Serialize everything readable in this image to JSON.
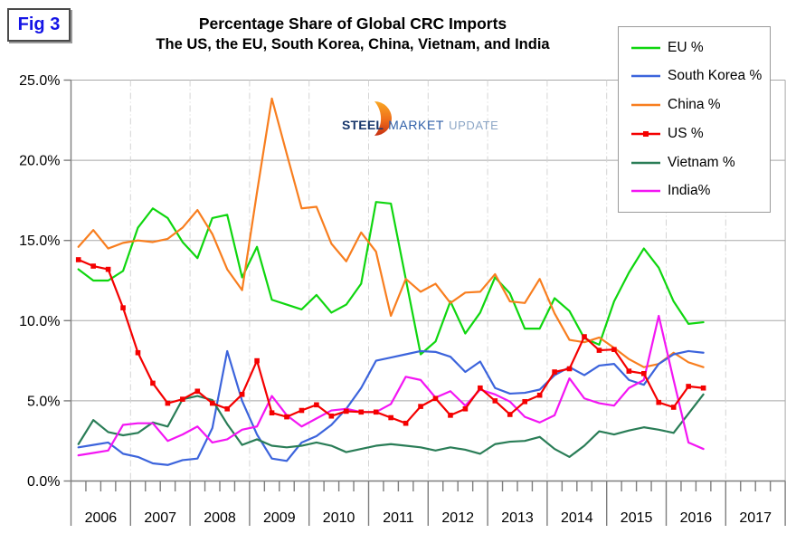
{
  "figure_label": "Fig 3",
  "title": {
    "line1": "Percentage Share of Global CRC Imports",
    "line2": "The US, the EU, South Korea, China, Vietnam, and India"
  },
  "logo": {
    "word1": "STEEL",
    "word2": "MARKET",
    "word3": "UPDATE"
  },
  "chart_data": {
    "type": "line",
    "title": "Percentage Share of Global CRC Imports",
    "subtitle": "The US, the EU, South Korea, China, Vietnam, and India",
    "ylim": [
      0,
      25
    ],
    "ytick_step": 5,
    "y_tick_labels": [
      "0.0%",
      "5.0%",
      "10.0%",
      "15.0%",
      "20.0%",
      "25.0%"
    ],
    "x_year_labels": [
      "2006",
      "2007",
      "2008",
      "2009",
      "2010",
      "2011",
      "2012",
      "2013",
      "2014",
      "2015",
      "2016",
      "2017"
    ],
    "points_per_year": 4,
    "data_start": "2006 Q1",
    "data_end": "2016 Q3",
    "grid": {
      "horizontal": true,
      "vertical_year_lines": true
    },
    "legend_position": "top-right",
    "colors": {
      "grid": "#a8a8a8",
      "year_line": "#d4d4d4",
      "axis": "#7e7e7e",
      "fig_label": "#1414e6"
    },
    "series": [
      {
        "name": "EU %",
        "color": "#0fd60f",
        "marker": "none",
        "values": [
          13.2,
          12.5,
          12.5,
          13.1,
          15.8,
          17.0,
          16.4,
          14.9,
          13.9,
          16.4,
          16.6,
          12.7,
          14.6,
          11.3,
          11.0,
          10.7,
          11.6,
          10.5,
          11.0,
          12.3,
          17.4,
          17.3,
          12.6,
          7.9,
          8.7,
          11.2,
          9.2,
          10.5,
          12.7,
          11.7,
          9.5,
          9.5,
          11.4,
          10.6,
          8.9,
          8.5,
          11.2,
          13.0,
          14.5,
          13.3,
          11.2,
          9.8,
          9.9
        ]
      },
      {
        "name": "South Korea %",
        "color": "#3c64dc",
        "marker": "none",
        "values": [
          2.1,
          2.25,
          2.4,
          1.7,
          1.5,
          1.1,
          1.0,
          1.3,
          1.4,
          3.3,
          8.1,
          5.0,
          2.9,
          1.4,
          1.25,
          2.4,
          2.8,
          3.5,
          4.5,
          5.8,
          7.5,
          7.7,
          7.9,
          8.1,
          8.05,
          7.75,
          6.8,
          7.45,
          5.8,
          5.45,
          5.5,
          5.7,
          6.6,
          7.1,
          6.6,
          7.2,
          7.3,
          6.3,
          6.0,
          7.3,
          7.9,
          8.1,
          8.0
        ]
      },
      {
        "name": "China %",
        "color": "#f87e1f",
        "marker": "none",
        "values": [
          14.6,
          15.65,
          14.5,
          14.85,
          15.0,
          14.9,
          15.1,
          15.8,
          16.9,
          15.4,
          13.2,
          11.9,
          18.0,
          23.85,
          20.4,
          17.0,
          17.1,
          14.8,
          13.7,
          15.5,
          14.3,
          10.3,
          12.6,
          11.8,
          12.3,
          11.1,
          11.75,
          11.8,
          12.9,
          11.2,
          11.1,
          12.6,
          10.45,
          8.8,
          8.65,
          8.95,
          8.3,
          7.6,
          7.1,
          7.3,
          8.0,
          7.4,
          7.1
        ]
      },
      {
        "name": "US %",
        "color": "#f40000",
        "marker": "square",
        "values": [
          13.8,
          13.4,
          13.2,
          10.8,
          8.0,
          6.1,
          4.85,
          5.1,
          5.6,
          4.85,
          4.5,
          5.4,
          7.5,
          4.25,
          4.0,
          4.4,
          4.75,
          4.05,
          4.35,
          4.3,
          4.3,
          3.95,
          3.6,
          4.65,
          5.15,
          4.1,
          4.5,
          5.8,
          5.0,
          4.15,
          4.95,
          5.35,
          6.8,
          7.0,
          9.0,
          8.15,
          8.2,
          6.85,
          6.7,
          4.9,
          4.6,
          5.9,
          5.8
        ]
      },
      {
        "name": "Vietnam %",
        "color": "#2a7d57",
        "marker": "none",
        "values": [
          2.3,
          3.8,
          3.05,
          2.85,
          3.0,
          3.65,
          3.4,
          5.1,
          5.3,
          5.05,
          3.55,
          2.25,
          2.6,
          2.2,
          2.1,
          2.2,
          2.4,
          2.2,
          1.8,
          2.0,
          2.2,
          2.3,
          2.2,
          2.1,
          1.9,
          2.1,
          1.95,
          1.7,
          2.3,
          2.45,
          2.5,
          2.75,
          2.0,
          1.5,
          2.2,
          3.1,
          2.9,
          3.15,
          3.35,
          3.2,
          3.0,
          4.2,
          5.4
        ]
      },
      {
        "name": "India%",
        "color": "#f316f3",
        "marker": "none",
        "values": [
          1.6,
          1.75,
          1.9,
          3.5,
          3.6,
          3.6,
          2.5,
          2.9,
          3.4,
          2.4,
          2.6,
          3.2,
          3.4,
          5.3,
          4.1,
          3.4,
          3.9,
          4.4,
          4.5,
          4.3,
          4.3,
          4.8,
          6.5,
          6.3,
          5.2,
          5.6,
          4.7,
          5.7,
          5.4,
          4.95,
          4.0,
          3.65,
          4.1,
          6.4,
          5.15,
          4.85,
          4.7,
          5.8,
          6.3,
          10.3,
          6.3,
          2.4,
          2.0
        ]
      }
    ]
  }
}
